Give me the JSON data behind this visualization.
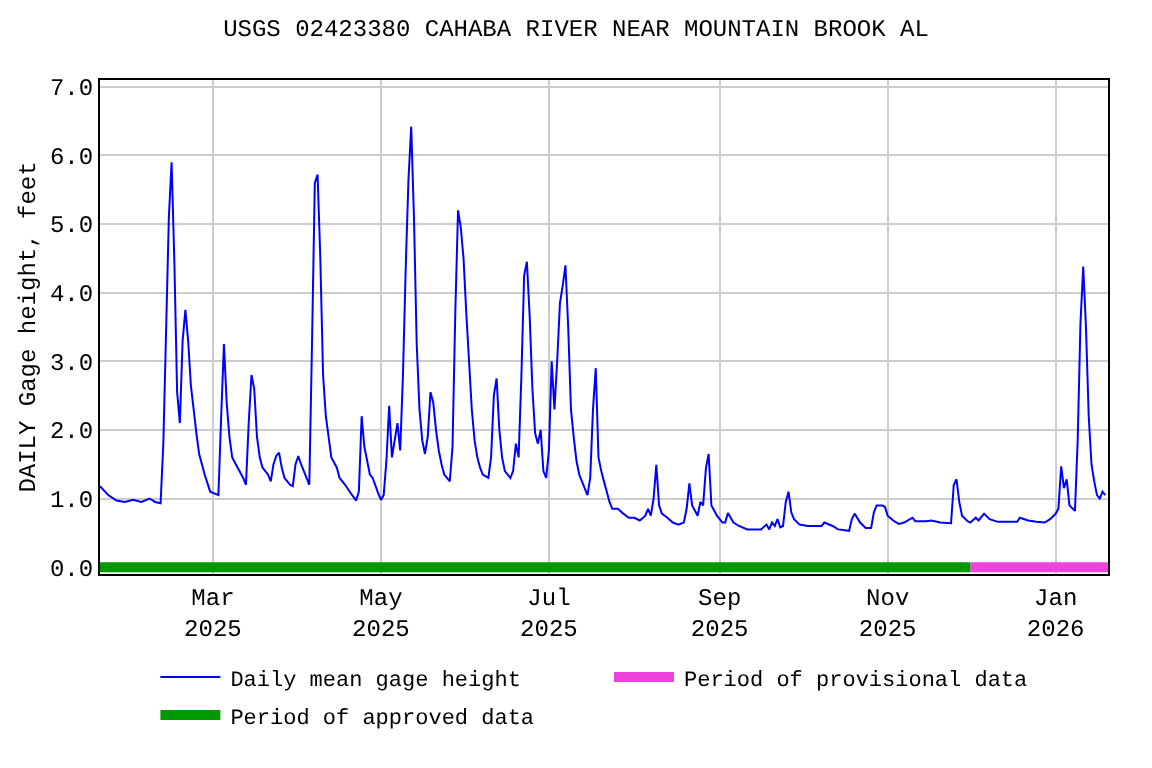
{
  "chart_data": {
    "type": "line",
    "title": "USGS 02423380 CAHABA RIVER NEAR MOUNTAIN BROOK AL",
    "ylabel": "DAILY Gage height, feet",
    "series": [
      {
        "name": "Daily mean gage height",
        "color": "#0000ff",
        "x": [
          "2025-01-19",
          "2025-01-22",
          "2025-01-25",
          "2025-01-28",
          "2025-01-31",
          "2025-02-03",
          "2025-02-06",
          "2025-02-08",
          "2025-02-10",
          "2025-02-11",
          "2025-02-12",
          "2025-02-13",
          "2025-02-14",
          "2025-02-15",
          "2025-02-16",
          "2025-02-17",
          "2025-02-18",
          "2025-02-19",
          "2025-02-20",
          "2025-02-21",
          "2025-02-22",
          "2025-02-23",
          "2025-02-24",
          "2025-02-25",
          "2025-02-26",
          "2025-02-28",
          "2025-03-03",
          "2025-03-04",
          "2025-03-05",
          "2025-03-06",
          "2025-03-07",
          "2025-03-08",
          "2025-03-10",
          "2025-03-12",
          "2025-03-13",
          "2025-03-14",
          "2025-03-15",
          "2025-03-16",
          "2025-03-17",
          "2025-03-18",
          "2025-03-19",
          "2025-03-21",
          "2025-03-22",
          "2025-03-23",
          "2025-03-24",
          "2025-03-25",
          "2025-03-26",
          "2025-03-27",
          "2025-03-29",
          "2025-03-30",
          "2025-03-31",
          "2025-04-01",
          "2025-04-02",
          "2025-04-04",
          "2025-04-05",
          "2025-04-06",
          "2025-04-07",
          "2025-04-08",
          "2025-04-09",
          "2025-04-10",
          "2025-04-11",
          "2025-04-12",
          "2025-04-13",
          "2025-04-15",
          "2025-04-16",
          "2025-04-18",
          "2025-04-20",
          "2025-04-22",
          "2025-04-23",
          "2025-04-24",
          "2025-04-25",
          "2025-04-26",
          "2025-04-27",
          "2025-04-28",
          "2025-04-30",
          "2025-05-01",
          "2025-05-02",
          "2025-05-03",
          "2025-05-04",
          "2025-05-05",
          "2025-05-07",
          "2025-05-08",
          "2025-05-09",
          "2025-05-10",
          "2025-05-11",
          "2025-05-12",
          "2025-05-13",
          "2025-05-14",
          "2025-05-15",
          "2025-05-16",
          "2025-05-17",
          "2025-05-18",
          "2025-05-19",
          "2025-05-20",
          "2025-05-21",
          "2025-05-22",
          "2025-05-23",
          "2025-05-24",
          "2025-05-26",
          "2025-05-27",
          "2025-05-28",
          "2025-05-29",
          "2025-05-30",
          "2025-05-31",
          "2025-06-01",
          "2025-06-02",
          "2025-06-03",
          "2025-06-04",
          "2025-06-05",
          "2025-06-06",
          "2025-06-07",
          "2025-06-09",
          "2025-06-10",
          "2025-06-11",
          "2025-06-12",
          "2025-06-13",
          "2025-06-14",
          "2025-06-15",
          "2025-06-17",
          "2025-06-18",
          "2025-06-19",
          "2025-06-20",
          "2025-06-21",
          "2025-06-22",
          "2025-06-23",
          "2025-06-24",
          "2025-06-25",
          "2025-06-26",
          "2025-06-27",
          "2025-06-28",
          "2025-06-29",
          "2025-06-30",
          "2025-07-01",
          "2025-07-02",
          "2025-07-03",
          "2025-07-04",
          "2025-07-05",
          "2025-07-06",
          "2025-07-07",
          "2025-07-08",
          "2025-07-09",
          "2025-07-10",
          "2025-07-11",
          "2025-07-12",
          "2025-07-13",
          "2025-07-15",
          "2025-07-16",
          "2025-07-17",
          "2025-07-18",
          "2025-07-19",
          "2025-07-20",
          "2025-07-21",
          "2025-07-22",
          "2025-07-23",
          "2025-07-24",
          "2025-07-26",
          "2025-07-28",
          "2025-07-30",
          "2025-08-01",
          "2025-08-03",
          "2025-08-05",
          "2025-08-06",
          "2025-08-07",
          "2025-08-08",
          "2025-08-09",
          "2025-08-10",
          "2025-08-11",
          "2025-08-13",
          "2025-08-15",
          "2025-08-17",
          "2025-08-19",
          "2025-08-20",
          "2025-08-21",
          "2025-08-22",
          "2025-08-24",
          "2025-08-25",
          "2025-08-26",
          "2025-08-27",
          "2025-08-28",
          "2025-08-29",
          "2025-08-31",
          "2025-09-02",
          "2025-09-03",
          "2025-09-04",
          "2025-09-06",
          "2025-09-08",
          "2025-09-11",
          "2025-09-16",
          "2025-09-18",
          "2025-09-19",
          "2025-09-20",
          "2025-09-21",
          "2025-09-22",
          "2025-09-23",
          "2025-09-24",
          "2025-09-25",
          "2025-09-26",
          "2025-09-27",
          "2025-09-28",
          "2025-09-30",
          "2025-10-03",
          "2025-10-08",
          "2025-10-09",
          "2025-10-12",
          "2025-10-14",
          "2025-10-18",
          "2025-10-19",
          "2025-10-20",
          "2025-10-22",
          "2025-10-24",
          "2025-10-26",
          "2025-10-27",
          "2025-10-28",
          "2025-10-30",
          "2025-10-31",
          "2025-11-01",
          "2025-11-03",
          "2025-11-05",
          "2025-11-07",
          "2025-11-10",
          "2025-11-11",
          "2025-11-15",
          "2025-11-17",
          "2025-11-20",
          "2025-11-24",
          "2025-11-25",
          "2025-11-26",
          "2025-11-27",
          "2025-11-28",
          "2025-11-30",
          "2025-12-01",
          "2025-12-03",
          "2025-12-04",
          "2025-12-06",
          "2025-12-08",
          "2025-12-11",
          "2025-12-14",
          "2025-12-18",
          "2025-12-19",
          "2025-12-22",
          "2025-12-25",
          "2025-12-28",
          "2025-12-30",
          "2026-01-01",
          "2026-01-02",
          "2026-01-03",
          "2026-01-04",
          "2026-01-05",
          "2026-01-06",
          "2026-01-08",
          "2026-01-09",
          "2026-01-10",
          "2026-01-11",
          "2026-01-12",
          "2026-01-13",
          "2026-01-14",
          "2026-01-15",
          "2026-01-16",
          "2026-01-17",
          "2026-01-18",
          "2026-01-19"
        ],
        "values": [
          1.18,
          1.05,
          0.97,
          0.95,
          0.98,
          0.95,
          1.0,
          0.95,
          0.93,
          1.8,
          3.45,
          5.1,
          5.9,
          4.45,
          2.55,
          2.1,
          3.3,
          3.75,
          3.3,
          2.65,
          2.3,
          1.95,
          1.65,
          1.5,
          1.35,
          1.1,
          1.05,
          2.2,
          3.25,
          2.4,
          1.9,
          1.6,
          1.45,
          1.3,
          1.2,
          2.1,
          2.8,
          2.6,
          1.9,
          1.6,
          1.45,
          1.35,
          1.25,
          1.5,
          1.62,
          1.67,
          1.45,
          1.3,
          1.2,
          1.18,
          1.5,
          1.62,
          1.5,
          1.3,
          1.2,
          3.3,
          5.6,
          5.72,
          4.5,
          2.8,
          2.2,
          1.9,
          1.6,
          1.45,
          1.3,
          1.2,
          1.08,
          0.97,
          1.1,
          2.2,
          1.75,
          1.55,
          1.35,
          1.3,
          1.08,
          0.98,
          1.05,
          1.55,
          2.35,
          1.6,
          2.1,
          1.7,
          2.8,
          4.35,
          5.65,
          6.42,
          5.1,
          3.25,
          2.3,
          1.85,
          1.65,
          1.9,
          2.55,
          2.4,
          2.0,
          1.7,
          1.5,
          1.35,
          1.25,
          1.75,
          3.7,
          5.2,
          4.95,
          4.5,
          3.7,
          3.0,
          2.3,
          1.85,
          1.6,
          1.45,
          1.35,
          1.3,
          1.6,
          2.5,
          2.75,
          2.0,
          1.6,
          1.4,
          1.3,
          1.4,
          1.8,
          1.6,
          2.78,
          4.25,
          4.45,
          3.67,
          2.6,
          1.95,
          1.8,
          2.0,
          1.4,
          1.3,
          1.7,
          3.0,
          2.3,
          3.0,
          3.85,
          4.1,
          4.4,
          3.5,
          2.3,
          1.9,
          1.55,
          1.35,
          1.25,
          1.05,
          1.3,
          2.3,
          2.9,
          1.6,
          1.4,
          1.25,
          1.1,
          0.95,
          0.85,
          0.85,
          0.78,
          0.72,
          0.72,
          0.68,
          0.75,
          0.85,
          0.75,
          1.0,
          1.49,
          0.9,
          0.78,
          0.72,
          0.65,
          0.62,
          0.65,
          0.85,
          1.22,
          0.9,
          0.75,
          0.95,
          0.9,
          1.44,
          1.65,
          0.9,
          0.75,
          0.65,
          0.65,
          0.79,
          0.65,
          0.6,
          0.55,
          0.55,
          0.62,
          0.55,
          0.65,
          0.6,
          0.7,
          0.58,
          0.6,
          0.95,
          1.1,
          0.8,
          0.7,
          0.62,
          0.6,
          0.6,
          0.65,
          0.6,
          0.55,
          0.53,
          0.7,
          0.78,
          0.65,
          0.57,
          0.57,
          0.8,
          0.9,
          0.9,
          0.88,
          0.75,
          0.68,
          0.63,
          0.65,
          0.72,
          0.67,
          0.67,
          0.68,
          0.65,
          0.64,
          1.2,
          1.28,
          0.95,
          0.75,
          0.67,
          0.65,
          0.72,
          0.68,
          0.78,
          0.7,
          0.66,
          0.66,
          0.66,
          0.72,
          0.68,
          0.66,
          0.65,
          0.7,
          0.78,
          0.85,
          1.47,
          1.15,
          1.28,
          0.9,
          0.82,
          1.85,
          3.55,
          4.38,
          3.5,
          2.2,
          1.5,
          1.25,
          1.05,
          1.0,
          1.1,
          1.05
        ]
      },
      {
        "name": "Period of provisional data",
        "color": "#ee44dd",
        "x": [
          "2025-12-01",
          "2026-01-20"
        ],
        "values": [
          0,
          0
        ]
      },
      {
        "name": "Period of approved data",
        "color": "#009900",
        "x": [
          "2025-01-19",
          "2025-12-01"
        ],
        "values": [
          0,
          0
        ]
      }
    ],
    "xlim": [
      "2025-01-19",
      "2026-01-20"
    ],
    "xticks": [
      {
        "value": "2025-03-01",
        "label": "Mar\n2025"
      },
      {
        "value": "2025-05-01",
        "label": "May\n2025"
      },
      {
        "value": "2025-07-01",
        "label": "Jul\n2025"
      },
      {
        "value": "2025-09-01",
        "label": "Sep\n2025"
      },
      {
        "value": "2025-11-01",
        "label": "Nov\n2025"
      },
      {
        "value": "2026-01-01",
        "label": "Jan\n2026"
      }
    ],
    "ylim": [
      -0.1,
      7.1
    ],
    "yticks": [
      {
        "value": 0,
        "label": "0.0"
      },
      {
        "value": 1,
        "label": "1.0"
      },
      {
        "value": 2,
        "label": "2.0"
      },
      {
        "value": 3,
        "label": "3.0"
      },
      {
        "value": 4,
        "label": "4.0"
      },
      {
        "value": 5,
        "label": "5.0"
      },
      {
        "value": 6,
        "label": "6.0"
      },
      {
        "value": 7,
        "label": "7.0"
      }
    ],
    "grid": true,
    "legend": "bottom"
  }
}
